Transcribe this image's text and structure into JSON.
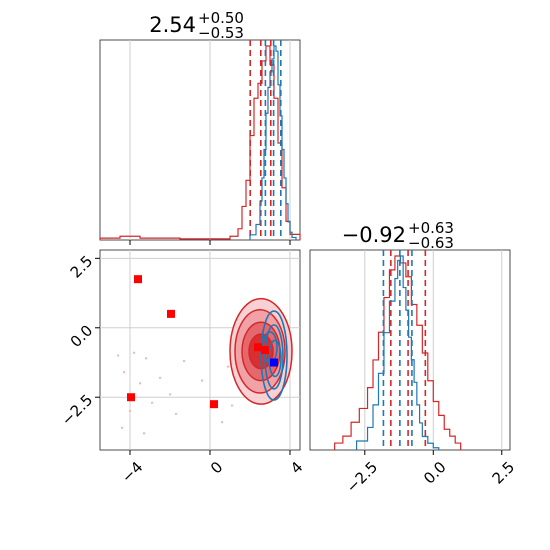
{
  "chart_data": [
    {
      "type": "histogram",
      "panel": "top-left",
      "title_main": "2.54",
      "title_sup": "+0.50",
      "title_sub": "−0.53",
      "xlim": [
        -5.5,
        4.5
      ],
      "ticks": [
        -4,
        0,
        4
      ],
      "grid": true,
      "series": [
        {
          "color": "#d62728",
          "bin_edges": [
            -5.5,
            -4.5,
            -3.5,
            -2.5,
            -1.5,
            -0.5,
            0.5,
            1.0,
            1.4,
            1.6,
            1.8,
            2.0,
            2.2,
            2.4,
            2.6,
            2.8,
            3.0,
            3.2,
            3.4,
            3.6,
            3.8,
            4.0,
            4.5
          ],
          "heights": [
            0.5,
            1.0,
            0.5,
            0.5,
            0.3,
            0.3,
            0.3,
            1.0,
            3.0,
            9.0,
            16.0,
            28.0,
            38.0,
            42.0,
            48.0,
            52.0,
            47.0,
            38.0,
            26.0,
            14.0,
            5.0,
            1.5
          ],
          "quantiles": [
            2.01,
            2.54,
            3.04
          ]
        },
        {
          "color": "#1f77b4",
          "bin_edges": [
            2.0,
            2.3,
            2.5,
            2.6,
            2.7,
            2.8,
            2.9,
            3.0,
            3.1,
            3.2,
            3.3,
            3.4,
            3.5,
            3.6,
            3.7,
            3.8,
            3.9,
            4.0,
            4.1,
            4.3
          ],
          "heights": [
            4,
            12,
            30,
            48,
            70,
            98,
            118,
            130,
            140,
            150,
            146,
            120,
            96,
            70,
            48,
            28,
            14,
            6,
            2
          ],
          "quantiles": [
            2.77,
            3.18,
            3.54
          ]
        }
      ]
    },
    {
      "type": "scatter",
      "panel": "bottom-left",
      "xlim": [
        -5.5,
        4.5
      ],
      "ylim": [
        -4.4,
        2.8
      ],
      "xticks": [
        -4,
        0,
        4
      ],
      "yticks": [
        2.5,
        0.0,
        -2.5
      ],
      "ytick_labels": [
        "2.5",
        "0.0",
        "−2.5"
      ],
      "grid": true,
      "markers_red": [
        [
          -3.6,
          1.75
        ],
        [
          -1.95,
          0.5
        ],
        [
          -3.95,
          -2.5
        ],
        [
          0.2,
          -2.75
        ],
        [
          2.4,
          -0.7
        ],
        [
          2.75,
          -0.8
        ]
      ],
      "marker_blue": [
        3.2,
        -1.25
      ],
      "scatter_points": [
        [
          -4.6,
          -1.0
        ],
        [
          -4.3,
          -1.6
        ],
        [
          -4.4,
          -3.6
        ],
        [
          -3.8,
          -0.9
        ],
        [
          -3.5,
          -2.0
        ],
        [
          -3.2,
          -1.1
        ],
        [
          -2.9,
          -2.7
        ],
        [
          -2.5,
          -1.8
        ],
        [
          -2.0,
          -2.4
        ],
        [
          -1.7,
          -3.1
        ],
        [
          -4.0,
          -3.0
        ],
        [
          -3.3,
          -3.8
        ],
        [
          0.9,
          -1.4
        ],
        [
          1.1,
          -2.8
        ],
        [
          0.6,
          -3.4
        ],
        [
          -0.4,
          -1.9
        ],
        [
          -1.3,
          -1.2
        ],
        [
          1.5,
          -1.9
        ]
      ],
      "contours_red": [
        {
          "cx": 2.55,
          "cy": -0.85,
          "rx": 1.55,
          "ry": 1.9
        },
        {
          "cx": 2.5,
          "cy": -0.85,
          "rx": 1.25,
          "ry": 1.5
        },
        {
          "cx": 2.55,
          "cy": -0.85,
          "rx": 0.95,
          "ry": 1.05
        },
        {
          "cx": 2.55,
          "cy": -0.85,
          "rx": 0.6,
          "ry": 0.62
        }
      ],
      "contours_blue": [
        {
          "cx": 3.2,
          "cy": -1.0,
          "rx": 0.65,
          "ry": 1.6
        },
        {
          "cx": 3.2,
          "cy": -1.05,
          "rx": 0.45,
          "ry": 1.15
        },
        {
          "cx": 3.25,
          "cy": -1.1,
          "rx": 0.3,
          "ry": 0.65
        },
        {
          "cx": 3.0,
          "cy": -0.7,
          "rx": 0.35,
          "ry": 0.55
        }
      ]
    },
    {
      "type": "histogram",
      "panel": "bottom-right",
      "title_main": "−0.92",
      "title_sup": "+0.63",
      "title_sub": "−0.63",
      "xlim": [
        -4.5,
        2.8
      ],
      "ticks": [
        -2.5,
        0.0,
        2.5
      ],
      "tick_labels": [
        "−2.5",
        "0.0",
        "2.5"
      ],
      "grid": true,
      "series": [
        {
          "color": "#d62728",
          "bin_edges": [
            -3.6,
            -3.3,
            -3.0,
            -2.7,
            -2.4,
            -2.2,
            -2.0,
            -1.8,
            -1.6,
            -1.4,
            -1.2,
            -1.0,
            -0.8,
            -0.6,
            -0.4,
            -0.2,
            0.0,
            0.2,
            0.4,
            0.6,
            0.8,
            1.0
          ],
          "heights": [
            1,
            2,
            4,
            6,
            9,
            13,
            17,
            22,
            26,
            28,
            27,
            25,
            21,
            18,
            14,
            10,
            7,
            5,
            3,
            2,
            1
          ],
          "quantiles": [
            -1.55,
            -0.92,
            -0.29
          ]
        },
        {
          "color": "#1f77b4",
          "bin_edges": [
            -2.8,
            -2.4,
            -2.2,
            -2.0,
            -1.8,
            -1.6,
            -1.4,
            -1.3,
            -1.2,
            -1.1,
            -1.0,
            -0.9,
            -0.8,
            -0.7,
            -0.6,
            -0.5,
            -0.4,
            -0.2,
            0.0,
            0.2
          ],
          "heights": [
            4,
            10,
            20,
            34,
            52,
            66,
            76,
            84,
            86,
            72,
            62,
            50,
            40,
            30,
            20,
            12,
            6,
            3,
            1
          ],
          "quantiles": [
            -1.82,
            -1.22,
            -0.78
          ]
        }
      ]
    }
  ]
}
